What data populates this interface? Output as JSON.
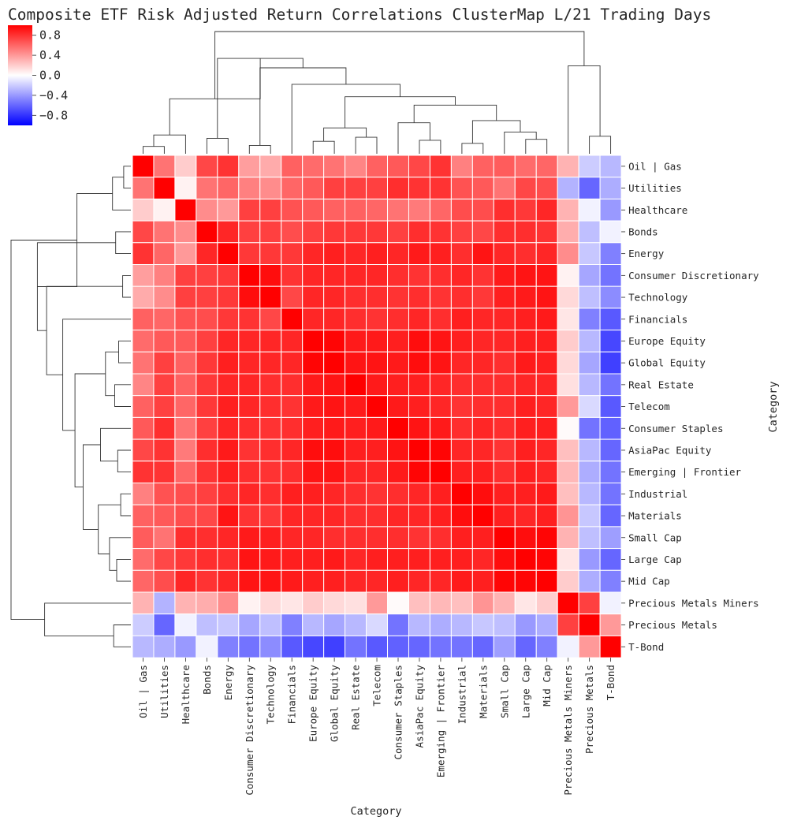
{
  "chart_data": {
    "type": "heatmap",
    "title": "Composite ETF Risk Adjusted Return Correlations ClusterMap L/21 Trading Days",
    "xlabel": "Category",
    "ylabel": "Category",
    "labels": [
      "Oil | Gas",
      "Utilities",
      "Healthcare",
      "Bonds",
      "Energy",
      "Consumer Discretionary",
      "Technology",
      "Financials",
      "Europe Equity",
      "Global Equity",
      "Real Estate",
      "Telecom",
      "Consumer Staples",
      "AsiaPac Equity",
      "Emerging | Frontier",
      "Industrial",
      "Materials",
      "Small Cap",
      "Large Cap",
      "Mid Cap",
      "Precious Metals Miners",
      "Precious Metals",
      "T-Bond"
    ],
    "colorbar": {
      "vmin": -1.0,
      "vmax": 1.0,
      "ticks": [
        0.8,
        0.4,
        0.0,
        -0.4,
        -0.8
      ],
      "tick_labels": [
        "0.8",
        "0.4",
        "0.0",
        "−0.4",
        "−0.8"
      ],
      "low_color": "#0000ff",
      "mid_color": "#ffffff",
      "high_color": "#ff0000"
    },
    "values": [
      [
        1.0,
        0.55,
        0.2,
        0.72,
        0.8,
        0.38,
        0.33,
        0.62,
        0.58,
        0.55,
        0.48,
        0.62,
        0.65,
        0.72,
        0.8,
        0.5,
        0.62,
        0.64,
        0.58,
        0.6,
        0.3,
        -0.2,
        -0.28
      ],
      [
        0.55,
        1.0,
        0.05,
        0.55,
        0.6,
        0.5,
        0.45,
        0.6,
        0.65,
        0.75,
        0.75,
        0.75,
        0.82,
        0.8,
        0.8,
        0.68,
        0.65,
        0.55,
        0.72,
        0.7,
        -0.3,
        -0.6,
        -0.32
      ],
      [
        0.2,
        0.05,
        1.0,
        0.45,
        0.4,
        0.75,
        0.75,
        0.68,
        0.65,
        0.62,
        0.62,
        0.6,
        0.55,
        0.52,
        0.6,
        0.7,
        0.7,
        0.82,
        0.78,
        0.85,
        0.3,
        -0.05,
        -0.4
      ],
      [
        0.72,
        0.55,
        0.45,
        1.0,
        0.85,
        0.75,
        0.75,
        0.7,
        0.75,
        0.78,
        0.78,
        0.78,
        0.75,
        0.82,
        0.8,
        0.75,
        0.72,
        0.82,
        0.82,
        0.8,
        0.32,
        -0.25,
        -0.05
      ],
      [
        0.8,
        0.6,
        0.4,
        0.85,
        1.0,
        0.78,
        0.78,
        0.78,
        0.85,
        0.88,
        0.85,
        0.88,
        0.85,
        0.9,
        0.88,
        0.82,
        0.92,
        0.85,
        0.82,
        0.85,
        0.45,
        -0.22,
        -0.5
      ],
      [
        0.38,
        0.5,
        0.75,
        0.75,
        0.78,
        1.0,
        0.95,
        0.8,
        0.85,
        0.85,
        0.85,
        0.85,
        0.82,
        0.8,
        0.82,
        0.85,
        0.8,
        0.9,
        0.92,
        0.92,
        0.05,
        -0.35,
        -0.55
      ],
      [
        0.33,
        0.45,
        0.75,
        0.75,
        0.78,
        0.95,
        1.0,
        0.72,
        0.85,
        0.85,
        0.82,
        0.82,
        0.8,
        0.82,
        0.8,
        0.82,
        0.78,
        0.88,
        0.9,
        0.92,
        0.15,
        -0.25,
        -0.45
      ],
      [
        0.62,
        0.6,
        0.68,
        0.7,
        0.78,
        0.8,
        0.72,
        1.0,
        0.85,
        0.85,
        0.82,
        0.8,
        0.82,
        0.85,
        0.82,
        0.88,
        0.85,
        0.85,
        0.88,
        0.9,
        0.1,
        -0.5,
        -0.65
      ],
      [
        0.58,
        0.65,
        0.65,
        0.75,
        0.85,
        0.85,
        0.85,
        0.85,
        1.0,
        0.98,
        0.9,
        0.9,
        0.88,
        0.95,
        0.92,
        0.88,
        0.85,
        0.85,
        0.88,
        0.88,
        0.2,
        -0.28,
        -0.72
      ],
      [
        0.55,
        0.75,
        0.62,
        0.78,
        0.88,
        0.85,
        0.85,
        0.85,
        0.98,
        1.0,
        0.92,
        0.92,
        0.9,
        0.95,
        0.92,
        0.85,
        0.85,
        0.82,
        0.9,
        0.88,
        0.15,
        -0.35,
        -0.75
      ],
      [
        0.48,
        0.75,
        0.62,
        0.78,
        0.85,
        0.85,
        0.82,
        0.82,
        0.9,
        0.92,
        1.0,
        0.9,
        0.88,
        0.88,
        0.85,
        0.82,
        0.82,
        0.82,
        0.85,
        0.85,
        0.12,
        -0.28,
        -0.55
      ],
      [
        0.62,
        0.75,
        0.6,
        0.78,
        0.88,
        0.85,
        0.82,
        0.8,
        0.9,
        0.92,
        0.9,
        1.0,
        0.9,
        0.88,
        0.85,
        0.8,
        0.82,
        0.82,
        0.88,
        0.85,
        0.4,
        -0.15,
        -0.65
      ],
      [
        0.65,
        0.82,
        0.55,
        0.75,
        0.85,
        0.82,
        0.8,
        0.82,
        0.88,
        0.9,
        0.88,
        0.9,
        1.0,
        0.92,
        0.9,
        0.82,
        0.85,
        0.82,
        0.88,
        0.88,
        0.02,
        -0.55,
        -0.62
      ],
      [
        0.72,
        0.8,
        0.52,
        0.82,
        0.9,
        0.8,
        0.82,
        0.85,
        0.95,
        0.95,
        0.88,
        0.88,
        0.92,
        1.0,
        0.98,
        0.85,
        0.85,
        0.8,
        0.88,
        0.85,
        0.25,
        -0.28,
        -0.6
      ],
      [
        0.8,
        0.8,
        0.6,
        0.8,
        0.88,
        0.82,
        0.8,
        0.82,
        0.92,
        0.92,
        0.85,
        0.85,
        0.9,
        0.98,
        1.0,
        0.88,
        0.88,
        0.82,
        0.88,
        0.85,
        0.28,
        -0.32,
        -0.55
      ],
      [
        0.5,
        0.68,
        0.7,
        0.75,
        0.82,
        0.85,
        0.82,
        0.88,
        0.88,
        0.85,
        0.82,
        0.8,
        0.82,
        0.85,
        0.88,
        1.0,
        0.95,
        0.88,
        0.88,
        0.9,
        0.25,
        -0.28,
        -0.55
      ],
      [
        0.62,
        0.65,
        0.7,
        0.72,
        0.92,
        0.8,
        0.78,
        0.85,
        0.85,
        0.85,
        0.82,
        0.82,
        0.85,
        0.85,
        0.88,
        0.95,
        1.0,
        0.88,
        0.85,
        0.88,
        0.42,
        -0.22,
        -0.6
      ],
      [
        0.64,
        0.55,
        0.82,
        0.82,
        0.85,
        0.9,
        0.88,
        0.85,
        0.85,
        0.82,
        0.82,
        0.82,
        0.82,
        0.8,
        0.82,
        0.88,
        0.88,
        1.0,
        0.95,
        0.98,
        0.3,
        -0.25,
        -0.38
      ],
      [
        0.58,
        0.72,
        0.78,
        0.82,
        0.82,
        0.92,
        0.9,
        0.88,
        0.88,
        0.9,
        0.85,
        0.88,
        0.88,
        0.88,
        0.88,
        0.88,
        0.85,
        0.95,
        1.0,
        0.98,
        0.1,
        -0.4,
        -0.6
      ],
      [
        0.6,
        0.7,
        0.85,
        0.8,
        0.85,
        0.92,
        0.92,
        0.9,
        0.88,
        0.88,
        0.85,
        0.85,
        0.88,
        0.85,
        0.85,
        0.9,
        0.88,
        0.98,
        0.98,
        1.0,
        0.2,
        -0.32,
        -0.5
      ],
      [
        0.3,
        -0.3,
        0.3,
        0.32,
        0.45,
        0.05,
        0.15,
        0.1,
        0.2,
        0.15,
        0.12,
        0.4,
        0.02,
        0.25,
        0.28,
        0.25,
        0.42,
        0.3,
        0.1,
        0.2,
        1.0,
        0.75,
        -0.05
      ],
      [
        -0.2,
        -0.6,
        -0.05,
        -0.25,
        -0.22,
        -0.35,
        -0.25,
        -0.5,
        -0.28,
        -0.35,
        -0.28,
        -0.15,
        -0.55,
        -0.28,
        -0.32,
        -0.28,
        -0.22,
        -0.25,
        -0.4,
        -0.32,
        0.75,
        1.0,
        0.4
      ],
      [
        -0.28,
        -0.32,
        -0.4,
        -0.05,
        -0.5,
        -0.55,
        -0.45,
        -0.65,
        -0.72,
        -0.75,
        -0.55,
        -0.65,
        -0.62,
        -0.6,
        -0.55,
        -0.55,
        -0.6,
        -0.38,
        -0.6,
        -0.5,
        -0.05,
        0.4,
        1.0
      ]
    ]
  }
}
